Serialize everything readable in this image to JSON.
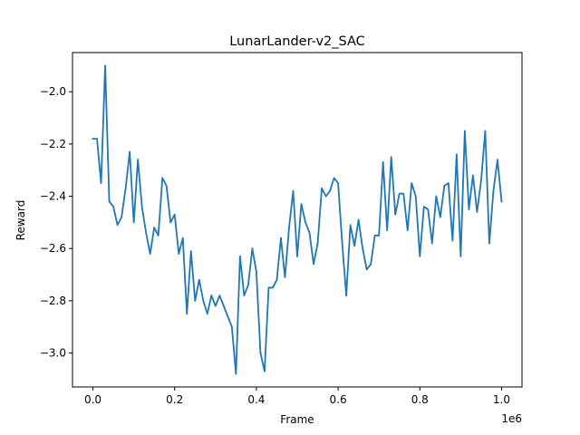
{
  "chart_data": {
    "type": "line",
    "title": "LunarLander-v2_SAC",
    "xlabel": "Frame",
    "ylabel": "Reward",
    "x_offset_label": "1e6",
    "xlim": [
      -50000,
      1050000
    ],
    "ylim": [
      -3.13,
      -1.85
    ],
    "xticks": [
      0,
      200000,
      400000,
      600000,
      800000,
      1000000
    ],
    "xtick_labels": [
      "0.0",
      "0.2",
      "0.4",
      "0.6",
      "0.8",
      "1.0"
    ],
    "yticks": [
      -3.0,
      -2.8,
      -2.6,
      -2.4,
      -2.2,
      -2.0
    ],
    "ytick_labels": [
      "−3.0",
      "−2.8",
      "−2.6",
      "−2.4",
      "−2.2",
      "−2.0"
    ],
    "grid": false,
    "legend": "none",
    "line_color": "#1f77b4",
    "x": [
      0,
      10000,
      20000,
      30000,
      40000,
      50000,
      60000,
      70000,
      80000,
      90000,
      100000,
      110000,
      120000,
      130000,
      140000,
      150000,
      160000,
      170000,
      180000,
      190000,
      200000,
      210000,
      220000,
      230000,
      240000,
      250000,
      260000,
      270000,
      280000,
      290000,
      300000,
      310000,
      320000,
      330000,
      340000,
      350000,
      360000,
      370000,
      380000,
      390000,
      400000,
      410000,
      420000,
      430000,
      440000,
      450000,
      460000,
      470000,
      480000,
      490000,
      500000,
      510000,
      520000,
      530000,
      540000,
      550000,
      560000,
      570000,
      580000,
      590000,
      600000,
      610000,
      620000,
      630000,
      640000,
      650000,
      660000,
      670000,
      680000,
      690000,
      700000,
      710000,
      720000,
      730000,
      740000,
      750000,
      760000,
      770000,
      780000,
      790000,
      800000,
      810000,
      820000,
      830000,
      840000,
      850000,
      860000,
      870000,
      880000,
      890000,
      900000,
      910000,
      920000,
      930000,
      940000,
      950000,
      960000,
      970000,
      980000,
      990000,
      1000000
    ],
    "values": [
      -2.18,
      -2.18,
      -2.35,
      -1.9,
      -2.42,
      -2.44,
      -2.51,
      -2.48,
      -2.37,
      -2.23,
      -2.5,
      -2.26,
      -2.44,
      -2.54,
      -2.62,
      -2.52,
      -2.55,
      -2.33,
      -2.36,
      -2.5,
      -2.47,
      -2.62,
      -2.56,
      -2.85,
      -2.61,
      -2.8,
      -2.72,
      -2.8,
      -2.85,
      -2.78,
      -2.82,
      -2.78,
      -2.82,
      -2.86,
      -2.9,
      -3.08,
      -2.63,
      -2.78,
      -2.74,
      -2.6,
      -2.69,
      -3.0,
      -3.07,
      -2.75,
      -2.75,
      -2.72,
      -2.56,
      -2.71,
      -2.52,
      -2.38,
      -2.63,
      -2.43,
      -2.5,
      -2.54,
      -2.66,
      -2.58,
      -2.37,
      -2.4,
      -2.38,
      -2.33,
      -2.35,
      -2.58,
      -2.78,
      -2.51,
      -2.59,
      -2.49,
      -2.6,
      -2.68,
      -2.66,
      -2.55,
      -2.55,
      -2.27,
      -2.53,
      -2.25,
      -2.47,
      -2.39,
      -2.39,
      -2.53,
      -2.35,
      -2.4,
      -2.63,
      -2.44,
      -2.45,
      -2.58,
      -2.4,
      -2.48,
      -2.36,
      -2.35,
      -2.57,
      -2.24,
      -2.63,
      -2.15,
      -2.45,
      -2.32,
      -2.46,
      -2.34,
      -2.15,
      -2.58,
      -2.38,
      -2.26,
      -2.42
    ]
  }
}
